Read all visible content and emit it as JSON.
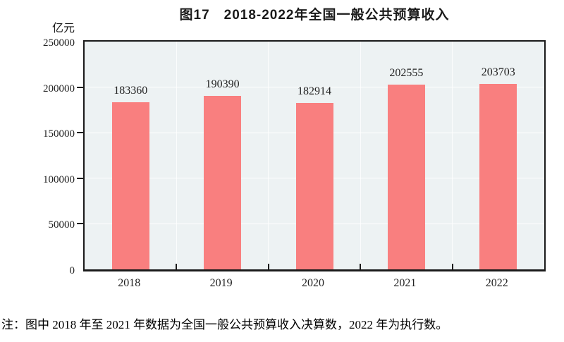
{
  "figure": {
    "title": "图17　2018-2022年全国一般公共预算收入",
    "unit_label": "亿元",
    "note": "注：图中 2018 年至 2021 年数据为全国一般公共预算收入决算数，2022 年为执行数。"
  },
  "colors": {
    "bar": "#f97f7f",
    "plot_bg": "#edf2f3",
    "axis": "#1a1a1a",
    "gridline": "#ffffff",
    "label_text": "#222222"
  },
  "chart_data": {
    "type": "bar",
    "title": "图17　2018-2022年全国一般公共预算收入",
    "categories": [
      "2018",
      "2019",
      "2020",
      "2021",
      "2022"
    ],
    "values": [
      183360,
      190390,
      182914,
      202555,
      203703
    ],
    "data_labels": [
      "183360",
      "190390",
      "182914",
      "202555",
      "203703"
    ],
    "xlabel": "",
    "ylabel": "亿元",
    "ylim": [
      0,
      250000
    ],
    "yticks": [
      0,
      50000,
      100000,
      150000,
      200000,
      250000
    ],
    "ytick_labels": [
      "0",
      "50000",
      "100000",
      "150000",
      "200000",
      "250000"
    ],
    "grid": true,
    "gridline_color": "white",
    "legend_position": "none",
    "note": "注：图中 2018 年至 2021 年数据为全国一般公共预算收入决算数，2022 年为执行数。"
  }
}
